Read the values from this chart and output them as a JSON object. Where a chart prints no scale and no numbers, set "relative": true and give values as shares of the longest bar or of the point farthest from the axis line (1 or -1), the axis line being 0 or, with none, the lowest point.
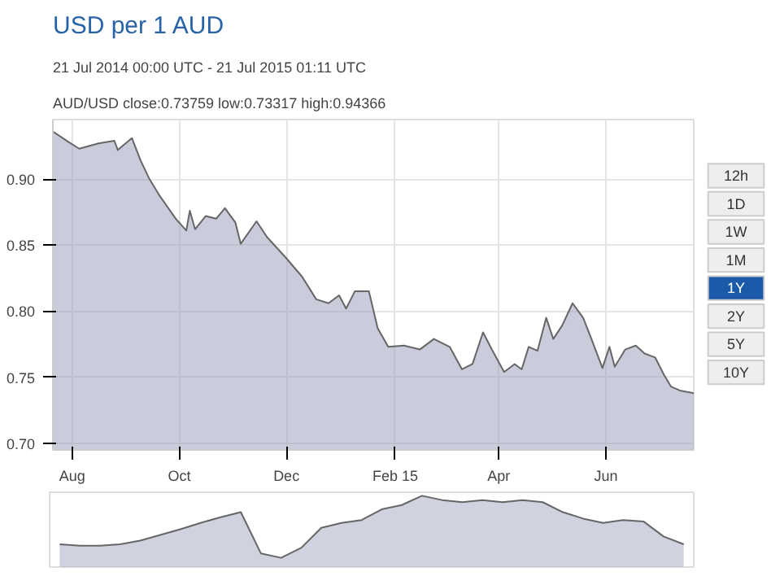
{
  "chart_data": [
    {
      "type": "area",
      "title": "USD per 1 AUD",
      "subtitle": "21 Jul 2014 00:00 UTC - 21 Jul 2015 01:11 UTC",
      "annotations": [
        "AUD/USD close:0.73759 low:0.73317 high:0.94366"
      ],
      "x": [
        "2014-07-21",
        "2014-07-30",
        "2014-08-05",
        "2014-08-16",
        "2014-08-25",
        "2014-08-27",
        "2014-09-04",
        "2014-09-09",
        "2014-09-14",
        "2014-09-20",
        "2014-09-29",
        "2014-10-05",
        "2014-10-07",
        "2014-10-10",
        "2014-10-16",
        "2014-10-22",
        "2014-10-27",
        "2014-11-02",
        "2014-11-05",
        "2014-11-14",
        "2014-11-20",
        "2014-12-01",
        "2014-12-10",
        "2014-12-18",
        "2014-12-25",
        "2014-12-31",
        "2015-01-04",
        "2015-01-09",
        "2015-01-17",
        "2015-01-22",
        "2015-01-28",
        "2015-02-06",
        "2015-02-15",
        "2015-02-23",
        "2015-03-04",
        "2015-03-11",
        "2015-03-17",
        "2015-03-23",
        "2015-03-28",
        "2015-04-04",
        "2015-04-10",
        "2015-04-14",
        "2015-04-18",
        "2015-04-23",
        "2015-04-28",
        "2015-05-02",
        "2015-05-07",
        "2015-05-13",
        "2015-05-19",
        "2015-05-24",
        "2015-05-30",
        "2015-06-03",
        "2015-06-06",
        "2015-06-12",
        "2015-06-18",
        "2015-06-23",
        "2015-06-29",
        "2015-07-04",
        "2015-07-08",
        "2015-07-13",
        "2015-07-21"
      ],
      "series": [
        {
          "color": "#9fa3bd",
          "values": [
            0.936,
            0.928,
            0.923,
            0.927,
            0.929,
            0.922,
            0.931,
            0.914,
            0.9,
            0.887,
            0.87,
            0.861,
            0.876,
            0.862,
            0.872,
            0.87,
            0.878,
            0.867,
            0.851,
            0.868,
            0.856,
            0.84,
            0.826,
            0.809,
            0.806,
            0.812,
            0.802,
            0.815,
            0.815,
            0.787,
            0.773,
            0.774,
            0.771,
            0.779,
            0.773,
            0.756,
            0.76,
            0.784,
            0.771,
            0.754,
            0.76,
            0.756,
            0.773,
            0.77,
            0.795,
            0.779,
            0.789,
            0.806,
            0.795,
            0.778,
            0.757,
            0.773,
            0.758,
            0.771,
            0.774,
            0.768,
            0.765,
            0.752,
            0.743,
            0.74,
            0.738
          ]
        }
      ],
      "xlim": [
        "2014-07-21",
        "2015-07-21"
      ],
      "xticks": [
        {
          "value": "2014-08-01",
          "label": "Aug"
        },
        {
          "value": "2014-10-01",
          "label": "Oct"
        },
        {
          "value": "2014-12-01",
          "label": "Dec"
        },
        {
          "value": "2015-02-01",
          "label": "Feb 15"
        },
        {
          "value": "2015-04-01",
          "label": "Apr"
        },
        {
          "value": "2015-06-01",
          "label": "Jun"
        }
      ],
      "ylim": [
        0.695,
        0.945
      ],
      "yticks": [
        {
          "value": 0.7,
          "label": "0.70"
        },
        0.75,
        {
          "value": 0.8,
          "label": "0.80"
        },
        0.85,
        {
          "value": 0.9,
          "label": "0.90"
        }
      ],
      "grid": true
    },
    {
      "type": "other",
      "annotations": [
        "12h",
        "1D",
        "1W",
        "1M",
        "1Y",
        "2Y",
        "5Y",
        "10Y"
      ],
      "colors": [
        "#eeeeee",
        "#eeeeee",
        "#eeeeee",
        "#eeeeee",
        "#1a5aa8",
        "#eeeeee",
        "#eeeeee",
        "#eeeeee"
      ]
    },
    {
      "type": "area",
      "relative": true,
      "categories": [
        null,
        null,
        null,
        null,
        null,
        null,
        null,
        null,
        null,
        null,
        null,
        null,
        null,
        null,
        null,
        null,
        null,
        null,
        null,
        null,
        null,
        null,
        null,
        null,
        null,
        null,
        null,
        null,
        null,
        null,
        null,
        null
      ],
      "series": [
        {
          "color": "#a9adc4",
          "values": [
            0.32,
            0.3,
            0.3,
            0.32,
            0.37,
            0.45,
            0.53,
            0.62,
            0.7,
            0.77,
            0.19,
            0.13,
            0.27,
            0.55,
            0.62,
            0.66,
            0.81,
            0.87,
            1.0,
            0.94,
            0.91,
            0.94,
            0.91,
            0.94,
            0.91,
            0.77,
            0.68,
            0.62,
            0.66,
            0.64,
            0.43,
            0.32
          ]
        }
      ]
    }
  ]
}
